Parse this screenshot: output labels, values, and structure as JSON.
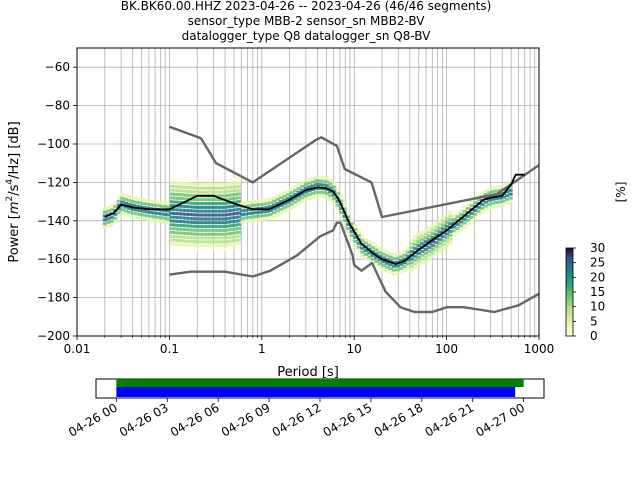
{
  "title_lines": [
    "BK.BK60.00.HHZ   2023-04-26 -- 2023-04-26  (46/46 segments)",
    "sensor_type MBB-2 sensor_sn MBB2-BV",
    "datalogger_type Q8 datalogger_sn Q8-BV"
  ],
  "chart_data": [
    {
      "type": "heatmap",
      "title": "BK.BK60.00.HHZ   2023-04-26 -- 2023-04-26  (46/46 segments)",
      "xlabel": "Period [s]",
      "ylabel": "Power [m²/s⁴/Hz] [dB]",
      "ylabel_parts": {
        "before": "Power [",
        "m": "m",
        "sup2": "2",
        "mid": "/s",
        "sup4": "4",
        "after": "/Hz] [dB]"
      },
      "x_scale": "log",
      "xlim": [
        0.01,
        1000
      ],
      "ylim": [
        -200,
        -50
      ],
      "x_ticks": [
        0.01,
        0.1,
        1,
        10,
        100,
        1000
      ],
      "x_tick_labels": [
        "0.01",
        "0.1",
        "1",
        "10",
        "100",
        "1000"
      ],
      "y_ticks": [
        -200,
        -180,
        -160,
        -140,
        -120,
        -100,
        -80,
        -60
      ],
      "y_tick_labels": [
        "−200",
        "−180",
        "−160",
        "−140",
        "−120",
        "−100",
        "−80",
        "−60"
      ],
      "grid": true,
      "colorbar": {
        "label": "[%]",
        "min": 0,
        "max": 30,
        "ticks": [
          0,
          5,
          10,
          15,
          20,
          25,
          30
        ],
        "tick_labels": [
          "0",
          "5",
          "10",
          "15",
          "20",
          "25",
          "30"
        ]
      },
      "series": [
        {
          "role": "noise-model-high",
          "color": "#666666",
          "points": [
            [
              0.1,
              -91
            ],
            [
              0.22,
              -97
            ],
            [
              0.32,
              -110
            ],
            [
              0.8,
              -120
            ],
            [
              3.8,
              -98
            ],
            [
              4.4,
              -96.5
            ],
            [
              6.5,
              -101
            ],
            [
              7.9,
              -113
            ],
            [
              15.4,
              -120
            ],
            [
              20,
              -138
            ],
            [
              354,
              -126
            ],
            [
              1000,
              -111
            ]
          ]
        },
        {
          "role": "noise-model-low",
          "color": "#666666",
          "points": [
            [
              0.1,
              -168
            ],
            [
              0.17,
              -166.5
            ],
            [
              0.4,
              -166.5
            ],
            [
              0.8,
              -169
            ],
            [
              1.24,
              -166
            ],
            [
              2.4,
              -158
            ],
            [
              4.3,
              -148
            ],
            [
              5.9,
              -145
            ],
            [
              6.5,
              -141
            ],
            [
              7.1,
              -141
            ],
            [
              9.6,
              -158
            ],
            [
              10,
              -163
            ],
            [
              12,
              -166
            ],
            [
              15.6,
              -162
            ],
            [
              21.9,
              -177
            ],
            [
              31.6,
              -185
            ],
            [
              45,
              -187.5
            ],
            [
              70,
              -187.5
            ],
            [
              101,
              -185
            ],
            [
              154,
              -185
            ],
            [
              328,
              -187.5
            ],
            [
              600,
              -184
            ],
            [
              1000,
              -178
            ]
          ]
        },
        {
          "role": "mean",
          "color": "#000000",
          "points": [
            [
              0.02,
              -138
            ],
            [
              0.025,
              -136
            ],
            [
              0.03,
              -131.5
            ],
            [
              0.04,
              -133
            ],
            [
              0.06,
              -134
            ],
            [
              0.1,
              -134
            ],
            [
              0.15,
              -130
            ],
            [
              0.2,
              -127
            ],
            [
              0.3,
              -127
            ],
            [
              0.5,
              -131
            ],
            [
              0.8,
              -134
            ],
            [
              1.2,
              -134
            ],
            [
              2,
              -129
            ],
            [
              3,
              -124
            ],
            [
              4,
              -122.5
            ],
            [
              5,
              -123
            ],
            [
              6,
              -125
            ],
            [
              7,
              -130
            ],
            [
              9,
              -142
            ],
            [
              12,
              -152
            ],
            [
              16,
              -157
            ],
            [
              20,
              -160
            ],
            [
              28,
              -162.5
            ],
            [
              35,
              -161
            ],
            [
              50,
              -155
            ],
            [
              70,
              -150
            ],
            [
              100,
              -145
            ],
            [
              150,
              -138
            ],
            [
              200,
              -133
            ],
            [
              250,
              -129
            ],
            [
              300,
              -128
            ],
            [
              400,
              -127
            ],
            [
              500,
              -121
            ],
            [
              560,
              -116
            ],
            [
              700,
              -116
            ]
          ]
        },
        {
          "role": "mode",
          "color": "#2a0a40",
          "points": [
            [
              0.02,
              -138.5
            ],
            [
              0.025,
              -137
            ],
            [
              0.03,
              -131
            ],
            [
              0.04,
              -133
            ],
            [
              0.06,
              -134.5
            ],
            [
              0.1,
              -136
            ],
            [
              0.2,
              -137
            ],
            [
              0.4,
              -137
            ],
            [
              0.8,
              -135
            ],
            [
              1.2,
              -134
            ],
            [
              2,
              -129
            ],
            [
              3,
              -124
            ],
            [
              4,
              -122
            ],
            [
              5,
              -122.5
            ],
            [
              6,
              -125
            ],
            [
              7,
              -131
            ],
            [
              9,
              -143
            ],
            [
              12,
              -153
            ],
            [
              16,
              -157
            ],
            [
              20,
              -160
            ],
            [
              28,
              -163
            ],
            [
              35,
              -161
            ],
            [
              50,
              -155
            ],
            [
              70,
              -151
            ],
            [
              100,
              -145
            ],
            [
              150,
              -139
            ],
            [
              200,
              -134
            ],
            [
              250,
              -130
            ],
            [
              300,
              -128
            ],
            [
              400,
              -127
            ],
            [
              500,
              -125
            ]
          ]
        }
      ]
    },
    {
      "type": "bar",
      "title": "",
      "x_tick_labels": [
        "04-26 00",
        "04-26 03",
        "04-26 06",
        "04-26 09",
        "04-26 12",
        "04-26 15",
        "04-26 18",
        "04-26 21",
        "04-27 00"
      ],
      "x_hours": [
        0,
        3,
        6,
        9,
        12,
        15,
        18,
        21,
        24
      ],
      "xlim_hours": [
        -1.2,
        25.2
      ],
      "series": [
        {
          "color": "#008000",
          "start_hour": 0,
          "end_hour": 24.0
        },
        {
          "color": "#0000ff",
          "start_hour": 0,
          "end_hour": 23.5
        }
      ]
    }
  ]
}
